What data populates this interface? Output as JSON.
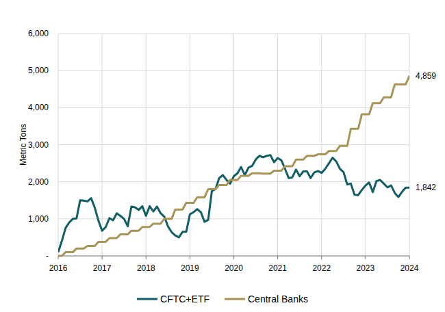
{
  "chart_data": {
    "type": "line",
    "y_label": "Metric Tons",
    "categories": [
      "2016",
      null,
      null,
      null,
      null,
      null,
      null,
      null,
      null,
      null,
      null,
      null,
      "2017",
      null,
      null,
      null,
      null,
      null,
      null,
      null,
      null,
      null,
      null,
      null,
      "2018",
      null,
      null,
      null,
      null,
      null,
      null,
      null,
      null,
      null,
      null,
      null,
      "2019",
      null,
      null,
      null,
      null,
      null,
      null,
      null,
      null,
      null,
      null,
      null,
      "2020",
      null,
      null,
      null,
      null,
      null,
      null,
      null,
      null,
      null,
      null,
      null,
      "2021",
      null,
      null,
      null,
      null,
      null,
      null,
      null,
      null,
      null,
      null,
      null,
      "2022",
      null,
      null,
      null,
      null,
      null,
      null,
      null,
      null,
      null,
      null,
      null,
      "2023",
      null,
      null,
      null,
      null,
      null,
      null,
      null,
      null,
      null,
      null,
      null,
      "2024"
    ],
    "series": [
      {
        "name": "CFTC+ETF",
        "color": "#115e67",
        "values": [
          100,
          400,
          750,
          900,
          1000,
          1010,
          1500,
          1490,
          1470,
          1560,
          1300,
          950,
          680,
          780,
          1020,
          960,
          1150,
          1080,
          1000,
          800,
          1330,
          1310,
          1240,
          1340,
          1080,
          1340,
          1200,
          1330,
          1150,
          1060,
          800,
          640,
          550,
          500,
          650,
          650,
          1120,
          1180,
          1260,
          1180,
          920,
          970,
          1750,
          1800,
          2100,
          2180,
          2050,
          1950,
          2150,
          2230,
          2400,
          2180,
          2380,
          2430,
          2600,
          2700,
          2660,
          2700,
          2720,
          2530,
          2640,
          2580,
          2350,
          2100,
          2120,
          2330,
          2150,
          2280,
          2280,
          2100,
          2250,
          2290,
          2240,
          2350,
          2500,
          2650,
          2550,
          2350,
          2260,
          1930,
          1950,
          1650,
          1640,
          1780,
          1900,
          1980,
          1720,
          2020,
          2050,
          1950,
          1850,
          1900,
          1700,
          1590,
          1730,
          1840,
          1842
        ],
        "value_labels": [
          null,
          null,
          null,
          null,
          null,
          null,
          null,
          null,
          null,
          null,
          null,
          null,
          null,
          null,
          null,
          null,
          null,
          null,
          null,
          null,
          null,
          null,
          null,
          null,
          null,
          null,
          null,
          null,
          null,
          null,
          null,
          null,
          null,
          null,
          null,
          null,
          null,
          null,
          null,
          null,
          null,
          null,
          null,
          null,
          null,
          null,
          null,
          null,
          null,
          null,
          null,
          null,
          null,
          null,
          null,
          null,
          null,
          null,
          null,
          null,
          null,
          null,
          null,
          null,
          null,
          null,
          null,
          null,
          null,
          null,
          null,
          null,
          null,
          null,
          null,
          null,
          null,
          null,
          null,
          null,
          null,
          null,
          null,
          null,
          null,
          null,
          null,
          null,
          null,
          null,
          null,
          null,
          null,
          null,
          null,
          null,
          "1,842"
        ]
      },
      {
        "name": "Central Banks",
        "color": "#a89456",
        "values": [
          0,
          0,
          100,
          100,
          100,
          200,
          200,
          200,
          270,
          270,
          270,
          380,
          380,
          380,
          480,
          480,
          480,
          580,
          580,
          580,
          680,
          680,
          680,
          780,
          780,
          780,
          870,
          870,
          870,
          1000,
          1000,
          1000,
          1250,
          1250,
          1250,
          1430,
          1430,
          1430,
          1580,
          1580,
          1580,
          1800,
          1800,
          1800,
          1910,
          1910,
          1910,
          2050,
          2050,
          2050,
          2160,
          2160,
          2160,
          2230,
          2230,
          2230,
          2220,
          2220,
          2220,
          2300,
          2300,
          2300,
          2420,
          2420,
          2420,
          2600,
          2600,
          2600,
          2700,
          2700,
          2700,
          2740,
          2740,
          2740,
          2830,
          2830,
          2830,
          2970,
          2970,
          2970,
          3430,
          3430,
          3430,
          3820,
          3820,
          3820,
          4120,
          4120,
          4120,
          4280,
          4280,
          4280,
          4630,
          4630,
          4630,
          4630,
          4859
        ],
        "value_labels": [
          null,
          null,
          null,
          null,
          null,
          null,
          null,
          null,
          null,
          null,
          null,
          null,
          null,
          null,
          null,
          null,
          null,
          null,
          null,
          null,
          null,
          null,
          null,
          null,
          null,
          null,
          null,
          null,
          null,
          null,
          null,
          null,
          null,
          null,
          null,
          null,
          null,
          null,
          null,
          null,
          null,
          null,
          null,
          null,
          null,
          null,
          null,
          null,
          null,
          null,
          null,
          null,
          null,
          null,
          null,
          null,
          null,
          null,
          null,
          null,
          null,
          null,
          null,
          null,
          null,
          null,
          null,
          null,
          null,
          null,
          null,
          null,
          null,
          null,
          null,
          null,
          null,
          null,
          null,
          null,
          null,
          null,
          null,
          null,
          null,
          null,
          null,
          null,
          null,
          null,
          null,
          null,
          null,
          null,
          null,
          null,
          "4,859"
        ]
      }
    ],
    "ylim": [
      0,
      6000
    ],
    "yticks": [
      {
        "value": 0,
        "label": "-"
      },
      {
        "value": 1000,
        "label": "1,000"
      },
      {
        "value": 2000,
        "label": "2,000"
      },
      {
        "value": 3000,
        "label": "3,000"
      },
      {
        "value": 4000,
        "label": "4,000"
      },
      {
        "value": 5000,
        "label": "5,000"
      },
      {
        "value": 6000,
        "label": "6,000"
      }
    ],
    "grid": true,
    "legend": "bottom"
  }
}
